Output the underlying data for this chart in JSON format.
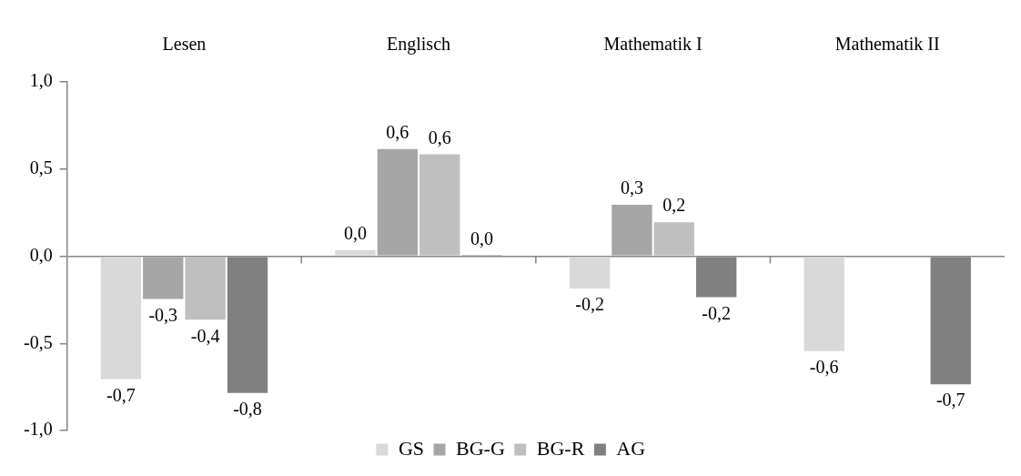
{
  "chart_data": {
    "type": "bar",
    "categories": [
      "Lesen",
      "Englisch",
      "Mathematik I",
      "Mathematik II"
    ],
    "series": [
      {
        "name": "GS",
        "color": "#d9d9d9",
        "values": [
          -0.71,
          0.04,
          -0.19,
          -0.55
        ],
        "value_labels": [
          "-0,7",
          "0,0",
          "-0,2",
          "-0,6"
        ]
      },
      {
        "name": "BG-G",
        "color": "#a6a6a6",
        "values": [
          -0.25,
          0.62,
          0.3,
          null
        ],
        "value_labels": [
          "-0,3",
          "0,6",
          "0,3",
          null
        ]
      },
      {
        "name": "BG-R",
        "color": "#bfbfbf",
        "values": [
          -0.37,
          0.59,
          0.2,
          null
        ],
        "value_labels": [
          "-0,4",
          "0,6",
          "0,2",
          null
        ]
      },
      {
        "name": "AG",
        "color": "#808080",
        "values": [
          -0.79,
          0.01,
          -0.24,
          -0.74
        ],
        "value_labels": [
          "-0,8",
          "0,0",
          "-0,2",
          "-0,7"
        ]
      }
    ],
    "ylim": [
      -1,
      1
    ],
    "yticks": [
      {
        "value": -1,
        "label": "-1,0"
      },
      {
        "value": -0.5,
        "label": "-0,5"
      },
      {
        "value": 0,
        "label": "0,0"
      },
      {
        "value": 0.5,
        "label": "0,5"
      },
      {
        "value": 1,
        "label": "1,0"
      }
    ],
    "legend": "bottom"
  }
}
